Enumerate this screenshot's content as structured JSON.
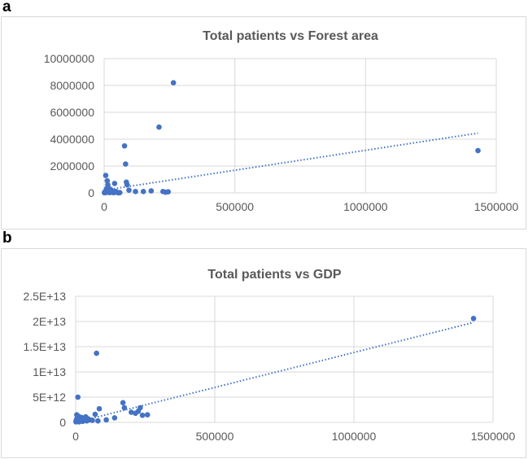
{
  "panel_labels": [
    "a",
    "b"
  ],
  "colors": {
    "series": "#4472c4",
    "grid": "#d9d9d9",
    "title": "#595959",
    "tick": "#595959"
  },
  "chart_data": [
    {
      "type": "scatter",
      "title": "Total patients vs Forest area",
      "xlabel": "",
      "ylabel": "",
      "xlim": [
        0,
        1500000
      ],
      "ylim": [
        0,
        10000000
      ],
      "x_ticks": [
        0,
        500000,
        1000000,
        1500000
      ],
      "y_ticks": [
        0,
        2000000,
        4000000,
        6000000,
        8000000,
        10000000
      ],
      "x_tick_labels": [
        "0",
        "500000",
        "1000000",
        "1500000"
      ],
      "y_tick_labels": [
        "0",
        "2000000",
        "4000000",
        "6000000",
        "8000000",
        "10000000"
      ],
      "grid": true,
      "trendline": {
        "style": "dotted",
        "from": [
          0,
          200000
        ],
        "to": [
          1430000,
          4450000
        ]
      },
      "points": [
        [
          1000,
          10000
        ],
        [
          2000,
          30000
        ],
        [
          3000,
          80000
        ],
        [
          5000,
          20000
        ],
        [
          6000,
          1300000
        ],
        [
          8000,
          150000
        ],
        [
          9000,
          300000
        ],
        [
          10000,
          50000
        ],
        [
          12000,
          900000
        ],
        [
          14000,
          600000
        ],
        [
          15000,
          200000
        ],
        [
          16000,
          50000
        ],
        [
          18000,
          350000
        ],
        [
          20000,
          100000
        ],
        [
          22000,
          20000
        ],
        [
          25000,
          250000
        ],
        [
          28000,
          80000
        ],
        [
          30000,
          150000
        ],
        [
          33000,
          60000
        ],
        [
          36000,
          10000
        ],
        [
          40000,
          700000
        ],
        [
          45000,
          100000
        ],
        [
          50000,
          30000
        ],
        [
          55000,
          5000
        ],
        [
          60000,
          20000
        ],
        [
          78000,
          3500000
        ],
        [
          82000,
          2150000
        ],
        [
          85000,
          800000
        ],
        [
          88000,
          600000
        ],
        [
          95000,
          200000
        ],
        [
          120000,
          100000
        ],
        [
          150000,
          100000
        ],
        [
          180000,
          150000
        ],
        [
          210000,
          4900000
        ],
        [
          225000,
          100000
        ],
        [
          235000,
          50000
        ],
        [
          245000,
          80000
        ],
        [
          265000,
          8200000
        ],
        [
          1430000,
          3150000
        ]
      ]
    },
    {
      "type": "scatter",
      "title": "Total patients vs GDP",
      "xlabel": "",
      "ylabel": "",
      "xlim": [
        0,
        1500000
      ],
      "ylim": [
        0,
        25000000000000
      ],
      "x_ticks": [
        0,
        500000,
        1000000,
        1500000
      ],
      "y_ticks": [
        0,
        5000000000000,
        10000000000000,
        15000000000000,
        20000000000000,
        25000000000000
      ],
      "x_tick_labels": [
        "0",
        "500000",
        "1000000",
        "1500000"
      ],
      "y_tick_labels": [
        "0",
        "5E+12",
        "1E+13",
        "1.5E+13",
        "2E+13",
        "2.5E+13"
      ],
      "grid": true,
      "trendline": {
        "style": "dotted",
        "from": [
          0,
          0
        ],
        "to": [
          1430000,
          19800000000000
        ]
      },
      "points": [
        [
          1000,
          100000000000
        ],
        [
          2000,
          300000000000
        ],
        [
          3000,
          600000000000
        ],
        [
          4000,
          1500000000000
        ],
        [
          5000,
          200000000000
        ],
        [
          6000,
          900000000000
        ],
        [
          8000,
          5000000000000
        ],
        [
          9000,
          400000000000
        ],
        [
          10000,
          1200000000000
        ],
        [
          12000,
          100000000000
        ],
        [
          14000,
          500000000000
        ],
        [
          16000,
          800000000000
        ],
        [
          18000,
          300000000000
        ],
        [
          20000,
          1000000000000
        ],
        [
          25000,
          200000000000
        ],
        [
          28000,
          600000000000
        ],
        [
          32000,
          400000000000
        ],
        [
          36000,
          1100000000000
        ],
        [
          40000,
          300000000000
        ],
        [
          45000,
          700000000000
        ],
        [
          50000,
          500000000000
        ],
        [
          60000,
          400000000000
        ],
        [
          70000,
          1600000000000
        ],
        [
          75000,
          13700000000000
        ],
        [
          80000,
          300000000000
        ],
        [
          85000,
          2700000000000
        ],
        [
          110000,
          500000000000
        ],
        [
          140000,
          900000000000
        ],
        [
          170000,
          3900000000000
        ],
        [
          175000,
          2900000000000
        ],
        [
          200000,
          2000000000000
        ],
        [
          215000,
          1800000000000
        ],
        [
          225000,
          2200000000000
        ],
        [
          232000,
          2900000000000
        ],
        [
          240000,
          1400000000000
        ],
        [
          258000,
          1500000000000
        ],
        [
          1430000,
          20600000000000
        ]
      ]
    }
  ]
}
